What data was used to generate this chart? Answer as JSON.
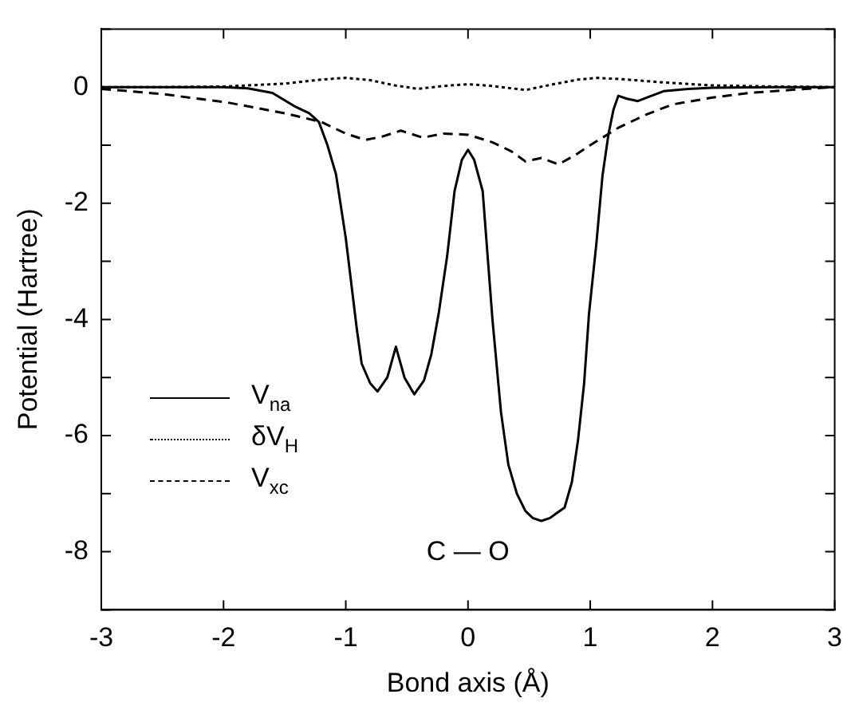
{
  "chart_data": {
    "type": "line",
    "xlabel": "Bond axis (Å)",
    "ylabel": "Potential (Hartree)",
    "xlim": [
      -3,
      3
    ],
    "xticks": [
      -3,
      -2,
      -1,
      0,
      1,
      2,
      3
    ],
    "ylim": [
      -9,
      1
    ],
    "yticks": [
      {
        "value": -9,
        "label": null
      },
      -8,
      {
        "value": -7,
        "label": null
      },
      -6,
      {
        "value": -5,
        "label": null
      },
      -4,
      {
        "value": -3,
        "label": null
      },
      -2,
      {
        "value": -1,
        "label": null
      },
      0,
      {
        "value": 1,
        "label": null
      }
    ],
    "grid": false,
    "legend": "bottom left",
    "marker": "none",
    "annotations": [
      "C — O"
    ],
    "series": [
      {
        "name": "V$_{na}$",
        "color": "#000000",
        "line_style": "solid",
        "x": [
          -3,
          -2.5,
          -2,
          -1.8,
          -1.6,
          -1.41,
          -1.3,
          -1.22,
          -1.15,
          -1.08,
          -1.0,
          -0.91,
          -0.87,
          -0.8,
          -0.74,
          -0.66,
          -0.59,
          -0.52,
          -0.44,
          -0.36,
          -0.3,
          -0.24,
          -0.17,
          -0.11,
          -0.05,
          0.0,
          0.05,
          0.12,
          0.2,
          0.27,
          0.33,
          0.4,
          0.47,
          0.53,
          0.6,
          0.67,
          0.73,
          0.79,
          0.85,
          0.9,
          0.95,
          0.99,
          1.05,
          1.1,
          1.15,
          1.19,
          1.23,
          1.3,
          1.39,
          1.5,
          1.6,
          1.8,
          2.0,
          2.5,
          3
        ],
        "values": [
          0,
          0,
          0,
          -0.02,
          -0.1,
          -0.34,
          -0.45,
          -0.6,
          -1.0,
          -1.5,
          -2.6,
          -4.16,
          -4.76,
          -5.1,
          -5.24,
          -5.0,
          -4.47,
          -5.0,
          -5.29,
          -5.05,
          -4.6,
          -3.9,
          -2.9,
          -1.79,
          -1.25,
          -1.08,
          -1.25,
          -1.79,
          -4.0,
          -5.6,
          -6.5,
          -7.0,
          -7.3,
          -7.42,
          -7.47,
          -7.42,
          -7.33,
          -7.24,
          -6.8,
          -6.08,
          -5.1,
          -3.9,
          -2.7,
          -1.53,
          -0.8,
          -0.39,
          -0.15,
          -0.2,
          -0.24,
          -0.15,
          -0.07,
          -0.03,
          -0.01,
          0,
          0
        ]
      },
      {
        "name": "δV$_{H}$",
        "color": "#000000",
        "line_style": "dotted",
        "x": [
          -3,
          -2.5,
          -2,
          -1.5,
          -1.2,
          -1.0,
          -0.8,
          -0.6,
          -0.41,
          -0.2,
          0,
          0.2,
          0.47,
          0.7,
          0.9,
          1.06,
          1.3,
          1.6,
          2.0,
          2.5,
          3
        ],
        "values": [
          0,
          0,
          0.01,
          0.06,
          0.13,
          0.16,
          0.12,
          0.03,
          -0.03,
          0.02,
          0.05,
          0.02,
          -0.05,
          0.05,
          0.13,
          0.16,
          0.13,
          0.08,
          0.03,
          0.01,
          0
        ]
      },
      {
        "name": "V$_{xc}$",
        "color": "#000000",
        "line_style": "dashed",
        "x": [
          -3,
          -2.5,
          -1.98,
          -1.5,
          -1.2,
          -1.0,
          -0.84,
          -0.7,
          -0.55,
          -0.37,
          -0.2,
          0,
          0.2,
          0.35,
          0.47,
          0.6,
          0.74,
          0.87,
          1.0,
          1.23,
          1.45,
          1.67,
          2.0,
          2.3,
          2.7,
          3
        ],
        "values": [
          -0.03,
          -0.12,
          -0.26,
          -0.45,
          -0.6,
          -0.8,
          -0.91,
          -0.85,
          -0.75,
          -0.87,
          -0.8,
          -0.82,
          -0.95,
          -1.1,
          -1.28,
          -1.22,
          -1.33,
          -1.18,
          -1.0,
          -0.7,
          -0.48,
          -0.3,
          -0.18,
          -0.1,
          -0.04,
          0
        ]
      }
    ]
  }
}
